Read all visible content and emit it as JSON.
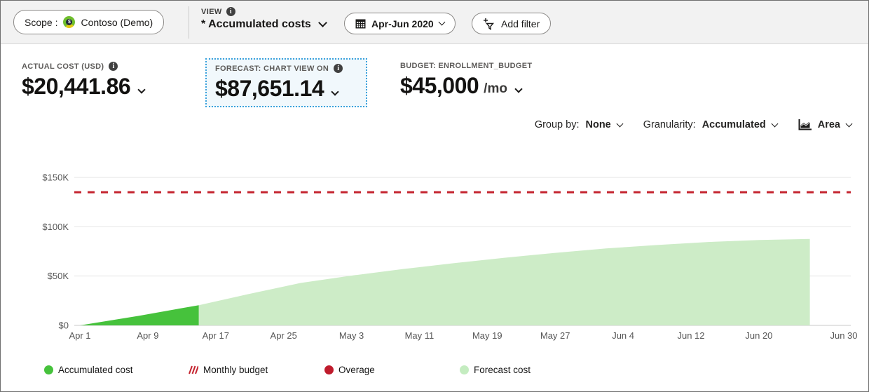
{
  "topbar": {
    "scope_label": "Scope :",
    "scope_value": "Contoso (Demo)",
    "view_label": "VIEW",
    "view_value": "* Accumulated costs",
    "date_range": "Apr-Jun 2020",
    "add_filter_label": "Add filter"
  },
  "kpis": {
    "actual": {
      "label": "ACTUAL COST (USD)",
      "value": "$20,441.86"
    },
    "forecast": {
      "label": "FORECAST: CHART VIEW ON",
      "value": "$87,651.14"
    },
    "budget": {
      "label": "BUDGET: ENROLLMENT_BUDGET",
      "value": "$45,000",
      "suffix": "/mo"
    }
  },
  "controls": {
    "group_by_label": "Group by:",
    "group_by_value": "None",
    "granularity_label": "Granularity:",
    "granularity_value": "Accumulated",
    "chart_type": "Area"
  },
  "colors": {
    "accumulated_cost": "#46c23c",
    "forecast_cost": "#cdecc7",
    "budget_line": "#c4232e",
    "overage": "#bf1b2c",
    "forecast_card_border": "#3ba2dc"
  },
  "chart_data": {
    "type": "area",
    "title": "Accumulated cost with forecast, Apr-Jun 2020 (USD)",
    "grid": true,
    "y_axis": {
      "tick_values": [
        0,
        50,
        100,
        150
      ],
      "tick_labels": [
        "$0",
        "$50K",
        "$100K",
        "$150K"
      ],
      "unit": "USD thousands",
      "ylim": [
        0,
        160
      ]
    },
    "x_axis": {
      "start_day": 0,
      "end_day": 90,
      "tick_days": [
        0,
        8,
        16,
        24,
        32,
        40,
        48,
        56,
        64,
        72,
        80,
        90
      ],
      "tick_labels": [
        "Apr 1",
        "Apr 9",
        "Apr 17",
        "Apr 25",
        "May 3",
        "May 11",
        "May 19",
        "May 27",
        "Jun 4",
        "Jun 12",
        "Jun 20",
        "Jun 30"
      ]
    },
    "budget_line": {
      "name": "Monthly budget",
      "value_k": 135,
      "color": "#c4232e",
      "style": "dashed"
    },
    "series": [
      {
        "name": "Forecast cost",
        "color": "#cdecc7",
        "points": [
          [
            14,
            20.44
          ],
          [
            20,
            32
          ],
          [
            26,
            43
          ],
          [
            32,
            50.5
          ],
          [
            38,
            57
          ],
          [
            44,
            63
          ],
          [
            50,
            68.5
          ],
          [
            56,
            73.5
          ],
          [
            62,
            78
          ],
          [
            68,
            81.5
          ],
          [
            74,
            84.5
          ],
          [
            80,
            86.5
          ],
          [
            86,
            87.65
          ]
        ]
      },
      {
        "name": "Accumulated cost",
        "color": "#46c23c",
        "points": [
          [
            0,
            0
          ],
          [
            7,
            9.8
          ],
          [
            14,
            20.44
          ]
        ]
      }
    ]
  },
  "legend": {
    "items": [
      {
        "label": "Accumulated cost",
        "type": "dot",
        "color": "#46c23c"
      },
      {
        "label": "Monthly budget",
        "type": "hatch",
        "color": "#c4232e"
      },
      {
        "label": "Overage",
        "type": "dot",
        "color": "#bf1b2c"
      },
      {
        "label": "Forecast cost",
        "type": "dot",
        "color": "#c4ecc0"
      }
    ]
  }
}
